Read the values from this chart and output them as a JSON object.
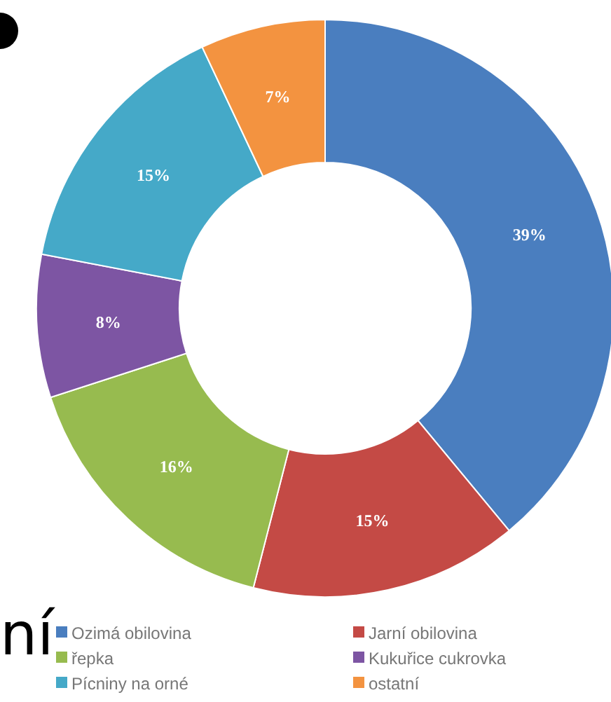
{
  "chart_data": {
    "type": "donut",
    "categories": [
      "Ozimá obilovina",
      "Jarní obilovina",
      "řepka",
      "Kukuřice cukrovka",
      "Pícniny na orné",
      "ostatní"
    ],
    "values": [
      39,
      15,
      16,
      8,
      15,
      7
    ],
    "colors": [
      "#4a7ebf",
      "#c44a45",
      "#97bb4f",
      "#7d55a3",
      "#45a9c8",
      "#f39340"
    ],
    "value_labels": [
      "39%",
      "15%",
      "16%",
      "8%",
      "15%",
      "7%"
    ],
    "legend": "bottom",
    "annotations": [
      "ní"
    ]
  }
}
